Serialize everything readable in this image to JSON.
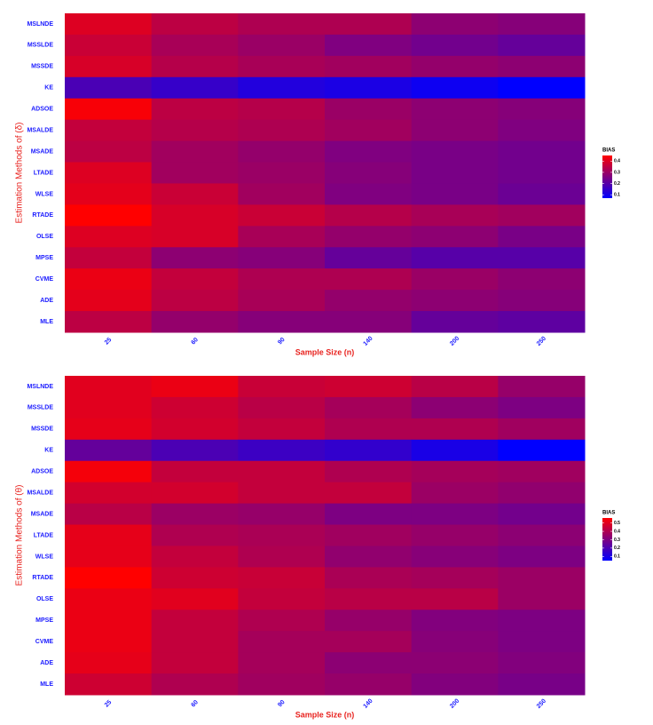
{
  "chart_data": [
    {
      "type": "heatmap",
      "x_label": "Sample Size (n)",
      "y_label": "Estimation Methods of (δ)",
      "categories": [
        "25",
        "60",
        "90",
        "140",
        "200",
        "250"
      ],
      "rows": [
        "MSLNDE",
        "MSSLDE",
        "MSSDE",
        "KE",
        "ADSOE",
        "MSALDE",
        "MSADE",
        "LTADE",
        "WLSE",
        "RTADE",
        "OLSE",
        "MPSE",
        "CVME",
        "ADE",
        "MLE"
      ],
      "values": [
        [
          0.4,
          0.35,
          0.33,
          0.33,
          0.28,
          0.27
        ],
        [
          0.37,
          0.32,
          0.3,
          0.26,
          0.24,
          0.22
        ],
        [
          0.39,
          0.34,
          0.32,
          0.31,
          0.29,
          0.28
        ],
        [
          0.18,
          0.15,
          0.12,
          0.11,
          0.09,
          0.07
        ],
        [
          0.44,
          0.35,
          0.34,
          0.3,
          0.28,
          0.27
        ],
        [
          0.36,
          0.34,
          0.33,
          0.31,
          0.28,
          0.26
        ],
        [
          0.35,
          0.31,
          0.29,
          0.26,
          0.25,
          0.24
        ],
        [
          0.4,
          0.31,
          0.3,
          0.27,
          0.25,
          0.24
        ],
        [
          0.41,
          0.37,
          0.31,
          0.26,
          0.25,
          0.23
        ],
        [
          0.45,
          0.39,
          0.37,
          0.34,
          0.32,
          0.31
        ],
        [
          0.4,
          0.39,
          0.32,
          0.29,
          0.28,
          0.25
        ],
        [
          0.36,
          0.28,
          0.27,
          0.22,
          0.2,
          0.2
        ],
        [
          0.42,
          0.36,
          0.33,
          0.33,
          0.3,
          0.28
        ],
        [
          0.41,
          0.35,
          0.32,
          0.29,
          0.28,
          0.27
        ],
        [
          0.35,
          0.29,
          0.27,
          0.27,
          0.22,
          0.21
        ]
      ],
      "legend_title": "BIAS",
      "clim": [
        0.07,
        0.45
      ],
      "cticks": [
        0.1,
        0.2,
        0.3,
        0.4
      ],
      "low_color": "#0000ff",
      "high_color": "#ff0000"
    },
    {
      "type": "heatmap",
      "x_label": "Sample Size (n)",
      "y_label": "Estimation Methods of (θ)",
      "categories": [
        "25",
        "60",
        "90",
        "140",
        "200",
        "250"
      ],
      "rows": [
        "MSLNDE",
        "MSSLDE",
        "MSSDE",
        "KE",
        "ADSOE",
        "MSALDE",
        "MSADE",
        "LTADE",
        "WLSE",
        "RTADE",
        "OLSE",
        "MPSE",
        "CVME",
        "ADE",
        "MLE"
      ],
      "values": [
        [
          0.5,
          0.52,
          0.45,
          0.46,
          0.42,
          0.35
        ],
        [
          0.5,
          0.46,
          0.42,
          0.38,
          0.33,
          0.3
        ],
        [
          0.51,
          0.47,
          0.44,
          0.4,
          0.4,
          0.37
        ],
        [
          0.25,
          0.2,
          0.17,
          0.15,
          0.1,
          0.05
        ],
        [
          0.54,
          0.44,
          0.44,
          0.4,
          0.38,
          0.37
        ],
        [
          0.47,
          0.47,
          0.44,
          0.44,
          0.36,
          0.34
        ],
        [
          0.42,
          0.36,
          0.35,
          0.3,
          0.3,
          0.28
        ],
        [
          0.51,
          0.4,
          0.39,
          0.37,
          0.35,
          0.33
        ],
        [
          0.51,
          0.44,
          0.4,
          0.34,
          0.32,
          0.3
        ],
        [
          0.56,
          0.46,
          0.45,
          0.39,
          0.38,
          0.36
        ],
        [
          0.52,
          0.5,
          0.44,
          0.42,
          0.42,
          0.36
        ],
        [
          0.52,
          0.44,
          0.4,
          0.35,
          0.31,
          0.3
        ],
        [
          0.52,
          0.44,
          0.38,
          0.38,
          0.32,
          0.3
        ],
        [
          0.51,
          0.44,
          0.38,
          0.33,
          0.33,
          0.31
        ],
        [
          0.46,
          0.4,
          0.37,
          0.35,
          0.31,
          0.29
        ]
      ],
      "legend_title": "BIAS",
      "clim": [
        0.05,
        0.56
      ],
      "cticks": [
        0.1,
        0.2,
        0.3,
        0.4,
        0.5
      ],
      "low_color": "#0000ff",
      "high_color": "#ff0000"
    }
  ]
}
